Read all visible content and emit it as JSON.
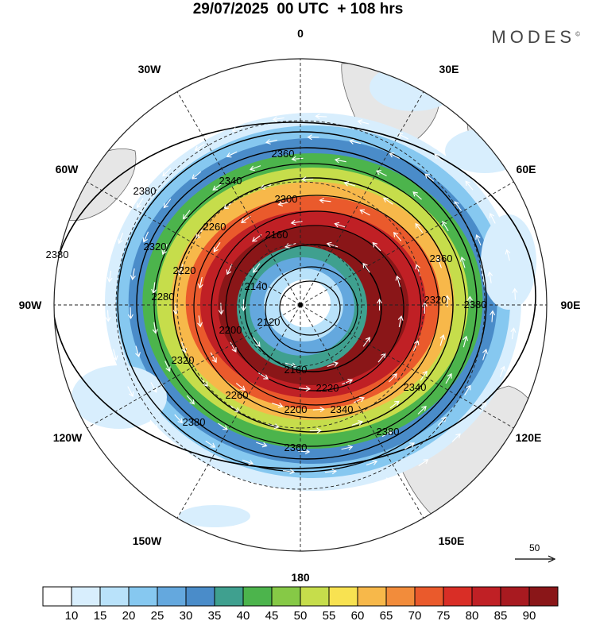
{
  "header": {
    "title": "29/07/2025  00 UTC  + 108 hrs",
    "brand": "MODES",
    "brand_mark": "©"
  },
  "map": {
    "projection": "south-polar-stereographic",
    "longitude_labels": [
      "0",
      "30E",
      "60E",
      "90E",
      "120E",
      "150E",
      "180",
      "150W",
      "120W",
      "90W",
      "60W",
      "30W"
    ],
    "wind_speed_bands": [
      90,
      80,
      70,
      60,
      50,
      40,
      30,
      20,
      10
    ],
    "contour_labels": [
      "2360",
      "2380",
      "2340",
      "2300",
      "2320",
      "2260",
      "2160",
      "2140",
      "2120",
      "2200",
      "2220",
      "2280",
      "2360",
      "2380",
      "2320",
      "2340",
      "2380",
      "2340",
      "2220",
      "2160",
      "2360",
      "2380",
      "2320",
      "2260",
      "2200",
      "2380"
    ],
    "reference_vector": {
      "value": "50"
    }
  },
  "colorbar": {
    "ticks": [
      "10",
      "15",
      "20",
      "25",
      "30",
      "35",
      "40",
      "45",
      "50",
      "55",
      "60",
      "65",
      "70",
      "75",
      "80",
      "85",
      "90"
    ],
    "colors": [
      "#ffffff",
      "#d8eefd",
      "#b9e2fa",
      "#86c8f0",
      "#64a8de",
      "#4a8cc9",
      "#3fa08f",
      "#4cb44c",
      "#86c946",
      "#c6dd4b",
      "#f8e251",
      "#f7b84a",
      "#f28c3b",
      "#ea5a2c",
      "#d92e26",
      "#c02025",
      "#a81a20",
      "#8a1618"
    ]
  }
}
